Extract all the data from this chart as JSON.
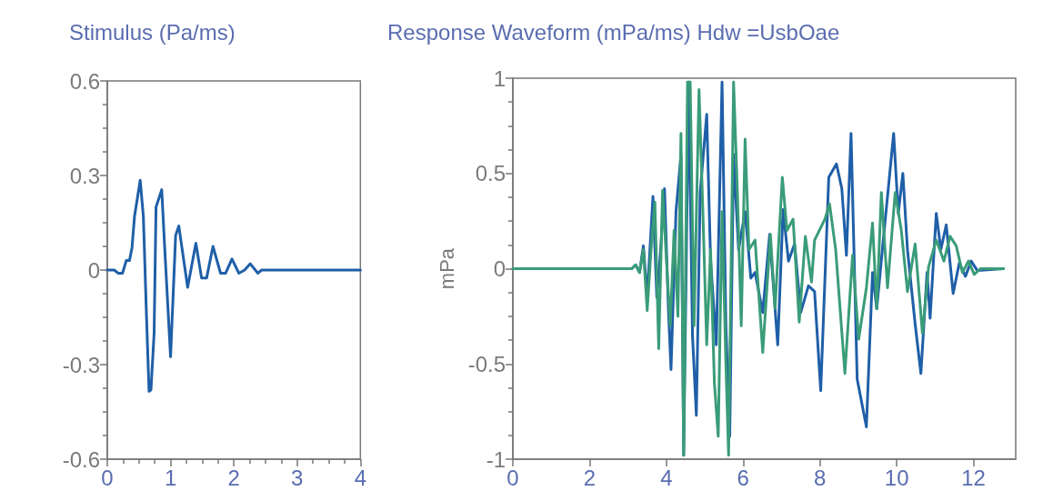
{
  "chart_data": [
    {
      "type": "line",
      "title": "Stimulus (Pa/ms)",
      "xlim": [
        0,
        4
      ],
      "xticks": [
        0,
        1,
        2,
        3,
        4
      ],
      "ylim": [
        -0.6,
        0.6
      ],
      "yticks": [
        -0.6,
        -0.3,
        0,
        0.3,
        0.6
      ],
      "grid": false,
      "marker": "none",
      "line_style": "solid",
      "series": [
        {
          "color": "#1f5fa8",
          "x": [
            0,
            0.11,
            0.17,
            0.24,
            0.3,
            0.35,
            0.39,
            0.43,
            0.52,
            0.57,
            0.62,
            0.66,
            0.69,
            0.74,
            0.77,
            0.86,
            0.91,
            1.0,
            1.08,
            1.13,
            1.27,
            1.4,
            1.49,
            1.57,
            1.67,
            1.79,
            1.87,
            1.97,
            2.08,
            2.17,
            2.26,
            2.38,
            2.44,
            4
          ],
          "values": [
            0,
            0,
            -0.01,
            -0.01,
            0.03,
            0.03,
            0.07,
            0.17,
            0.285,
            0.17,
            -0.15,
            -0.385,
            -0.38,
            -0.2,
            0.2,
            0.255,
            0.06,
            -0.275,
            0.11,
            0.14,
            -0.055,
            0.085,
            -0.025,
            -0.025,
            0.075,
            -0.01,
            -0.01,
            0.035,
            -0.01,
            0,
            0.02,
            -0.01,
            0,
            0
          ]
        }
      ]
    },
    {
      "type": "line",
      "title": "Response Waveform (mPa/ms) Hdw =UsbOae",
      "ylabel": "mPa",
      "xlim": [
        0,
        13.1
      ],
      "xticks": [
        0,
        2,
        4,
        6,
        8,
        10,
        12
      ],
      "ylim": [
        -1,
        1
      ],
      "yticks": [
        -1,
        -0.5,
        0,
        0.5,
        1
      ],
      "grid": false,
      "marker": "none",
      "line_style": "solid",
      "series": [
        {
          "color": "#1f5fa8",
          "x": [
            0,
            3.1,
            3.2,
            3.3,
            3.4,
            3.5,
            3.65,
            3.75,
            3.85,
            3.95,
            4.05,
            4.12,
            4.25,
            4.38,
            4.45,
            4.58,
            4.68,
            4.78,
            4.88,
            5.05,
            5.15,
            5.3,
            5.45,
            5.55,
            5.65,
            5.75,
            5.88,
            6.05,
            6.2,
            6.31,
            6.51,
            6.69,
            6.9,
            7.04,
            7.18,
            7.34,
            7.5,
            7.7,
            7.86,
            8.02,
            8.23,
            8.43,
            8.57,
            8.69,
            8.81,
            8.97,
            9.21,
            9.37,
            9.48,
            9.64,
            9.92,
            10.04,
            10.16,
            10.28,
            10.48,
            10.63,
            10.79,
            10.87,
            11.03,
            11.15,
            11.29,
            11.47,
            11.63,
            11.79,
            11.94,
            12.1,
            12.78
          ],
          "values": [
            0,
            0,
            0.02,
            -0.02,
            0.12,
            -0.15,
            0.38,
            -0.15,
            0.1,
            0.42,
            -0.2,
            -0.53,
            0.3,
            0.6,
            -0.98,
            0.98,
            -0.35,
            -0.77,
            0.4,
            0.81,
            0.05,
            -0.4,
            0.98,
            -0.3,
            -0.88,
            0.6,
            0.1,
            0.3,
            -0.05,
            -0.02,
            -0.23,
            0.18,
            -0.4,
            0.31,
            0.04,
            0.13,
            -0.23,
            -0.09,
            -0.12,
            -0.64,
            0.48,
            0.55,
            0.42,
            0.07,
            0.71,
            -0.58,
            -0.83,
            -0.02,
            -0.21,
            0.13,
            0.71,
            0.29,
            0.5,
            0.1,
            -0.29,
            -0.55,
            -0.02,
            -0.26,
            0.29,
            0.1,
            0.23,
            -0.13,
            0.03,
            -0.04,
            0.04,
            -0.01,
            0
          ]
        },
        {
          "color": "#3a9c78",
          "x": [
            0,
            3.1,
            3.2,
            3.3,
            3.4,
            3.5,
            3.6,
            3.7,
            3.8,
            3.9,
            4.0,
            4.1,
            4.2,
            4.3,
            4.38,
            4.45,
            4.55,
            4.62,
            4.72,
            4.85,
            4.95,
            5.05,
            5.15,
            5.25,
            5.35,
            5.45,
            5.55,
            5.62,
            5.75,
            5.85,
            5.95,
            6.05,
            6.15,
            6.31,
            6.51,
            6.71,
            6.83,
            7.02,
            7.14,
            7.3,
            7.46,
            7.62,
            7.78,
            7.86,
            8.13,
            8.25,
            8.41,
            8.65,
            8.85,
            9.01,
            9.21,
            9.37,
            9.48,
            9.6,
            9.76,
            9.96,
            10.12,
            10.28,
            10.48,
            10.67,
            10.83,
            11.03,
            11.23,
            11.39,
            11.55,
            11.71,
            11.87,
            12.02,
            12.18,
            12.78
          ],
          "values": [
            0,
            0,
            0.02,
            -0.02,
            0.1,
            -0.22,
            0.1,
            0.35,
            -0.42,
            0.41,
            0.05,
            -0.3,
            0.2,
            -0.25,
            0.71,
            -0.98,
            0.98,
            0.98,
            -0.3,
            0.94,
            0.3,
            -0.4,
            0.1,
            -0.6,
            -0.88,
            0.3,
            -0.5,
            -0.98,
            0.98,
            0.4,
            -0.3,
            0.68,
            0.1,
            0.15,
            -0.44,
            0.18,
            -0.21,
            0.48,
            0.2,
            0.26,
            -0.28,
            0.17,
            -0.07,
            0.15,
            0.26,
            0.34,
            0.1,
            -0.55,
            0.07,
            -0.37,
            -0.1,
            0.24,
            -0.21,
            0.4,
            -0.1,
            0.4,
            0.2,
            -0.12,
            0.13,
            -0.34,
            0.01,
            0.15,
            0.04,
            0.17,
            0.12,
            -0.02,
            0.04,
            -0.03,
            0,
            0
          ]
        }
      ]
    }
  ]
}
